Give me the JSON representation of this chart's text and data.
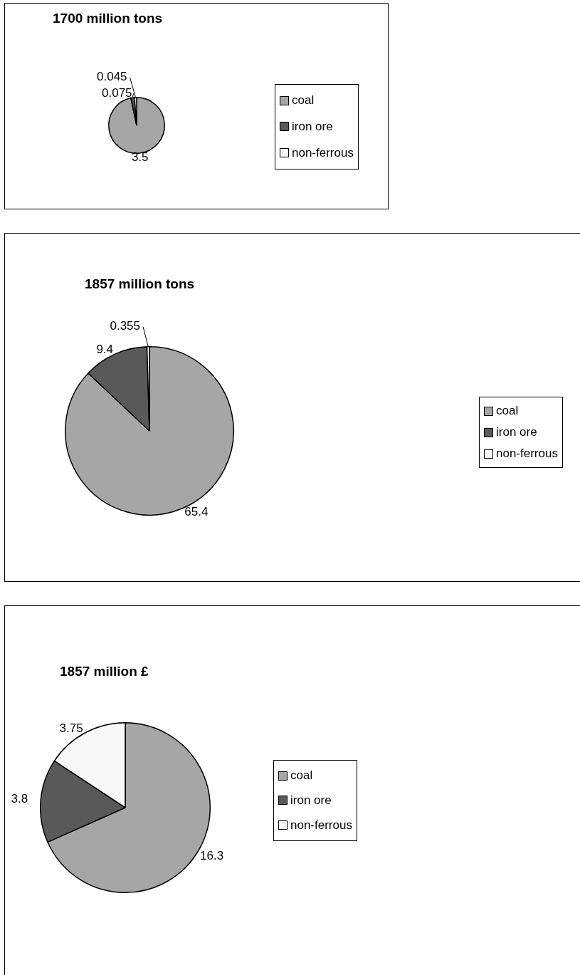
{
  "chart_data": [
    {
      "type": "pie",
      "title": "1700 million tons",
      "categories": [
        "coal",
        "iron ore",
        "non-ferrous"
      ],
      "values": [
        3.5,
        0.075,
        0.045
      ],
      "colors": [
        "#a6a6a6",
        "#595959",
        "#f8f8f8"
      ],
      "data_labels": true,
      "legend": "right"
    },
    {
      "type": "pie",
      "title": "1857 million tons",
      "categories": [
        "coal",
        "iron ore",
        "non-ferrous"
      ],
      "values": [
        65.4,
        9.4,
        0.355
      ],
      "colors": [
        "#a6a6a6",
        "#595959",
        "#f8f8f8"
      ],
      "data_labels": true,
      "legend": "right"
    },
    {
      "type": "pie",
      "title": "1857 million £",
      "categories": [
        "coal",
        "iron ore",
        "non-ferrous"
      ],
      "values": [
        16.3,
        3.8,
        3.75
      ],
      "colors": [
        "#a6a6a6",
        "#595959",
        "#f8f8f8"
      ],
      "data_labels": true,
      "legend": "right"
    }
  ]
}
